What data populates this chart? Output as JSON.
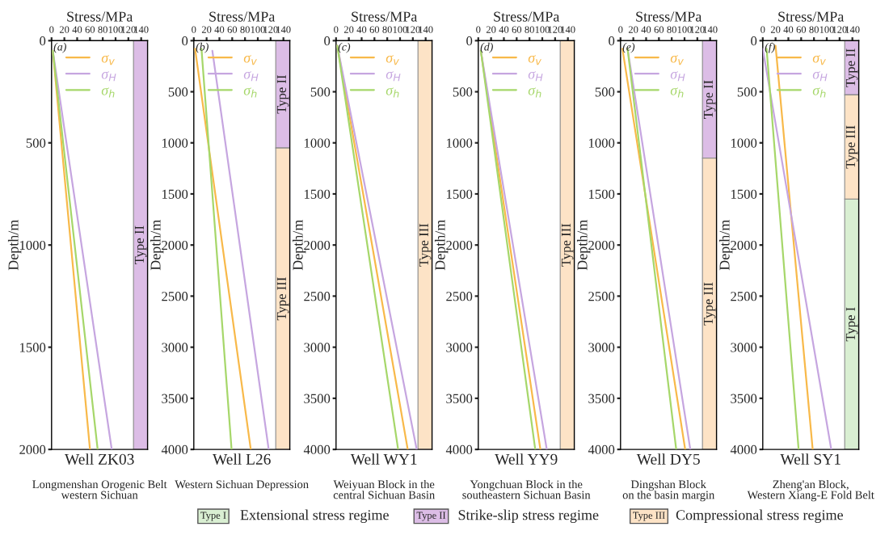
{
  "chart_data": [
    {
      "type": "line",
      "xlabel": "Stress/MPa",
      "ylabel": "Depth/m",
      "xlim": [
        0,
        150
      ],
      "xticks": [
        0,
        20,
        40,
        60,
        80,
        100,
        120,
        140
      ],
      "ylim": [
        2000,
        0
      ],
      "yticks": [
        0,
        500,
        1000,
        1500,
        2000
      ],
      "legend": "top right",
      "grid": false,
      "series": [
        {
          "name": "σ$_{v}$",
          "color": "#f8b94a",
          "x": [
            2,
            60
          ],
          "values": [
            50,
            2000
          ]
        },
        {
          "name": "σ$_{H}$",
          "color": "#c6a6e0",
          "x": [
            2,
            94
          ],
          "values": [
            50,
            2000
          ]
        },
        {
          "name": "σ$_{h}$",
          "color": "#a6d76a",
          "x": [
            2,
            72
          ],
          "values": [
            50,
            2000
          ]
        }
      ],
      "bands": [
        {
          "axis": "y",
          "from": 0,
          "to": 2000,
          "label": "Type II",
          "color": "#dcbde6"
        }
      ],
      "annotations": [
        "(a)",
        "Well ZK03",
        "Longmenshan Orogenic Belt\nwestern Sichuan"
      ]
    },
    {
      "type": "line",
      "xlabel": "Stress/MPa",
      "ylabel": "Depth/m",
      "xlim": [
        0,
        150
      ],
      "xticks": [
        0,
        20,
        40,
        60,
        80,
        100,
        120,
        140
      ],
      "ylim": [
        4000,
        0
      ],
      "yticks": [
        0,
        500,
        1000,
        1500,
        2000,
        2500,
        3000,
        3500,
        4000
      ],
      "legend": "top right",
      "grid": false,
      "series": [
        {
          "name": "σ$_{v}$",
          "color": "#f8b94a",
          "x": [
            2,
            89
          ],
          "values": [
            80,
            4000
          ]
        },
        {
          "name": "σ$_{H}$",
          "color": "#c6a6e0",
          "x": [
            29,
            117
          ],
          "values": [
            100,
            4000
          ]
        },
        {
          "name": "σ$_{h}$",
          "color": "#a6d76a",
          "x": [
            12,
            59
          ],
          "values": [
            80,
            4000
          ]
        }
      ],
      "bands": [
        {
          "axis": "y",
          "from": 0,
          "to": 1050,
          "label": "Type II",
          "color": "#dcbde6"
        },
        {
          "axis": "y",
          "from": 1050,
          "to": 4000,
          "label": "Type III",
          "color": "#fde3c6"
        }
      ],
      "annotations": [
        "(b)",
        "Well L26",
        "Western Sichuan Depression"
      ]
    },
    {
      "type": "line",
      "xlabel": "Stress/MPa",
      "ylabel": "Depth/m",
      "xlim": [
        0,
        150
      ],
      "xticks": [
        0,
        20,
        40,
        60,
        80,
        100,
        120,
        140
      ],
      "ylim": [
        4000,
        0
      ],
      "yticks": [
        0,
        500,
        1000,
        1500,
        2000,
        2500,
        3000,
        3500,
        4000
      ],
      "legend": "top right",
      "grid": false,
      "series": [
        {
          "name": "σ$_{v}$",
          "color": "#f8b94a",
          "x": [
            2,
            112
          ],
          "values": [
            50,
            4000
          ]
        },
        {
          "name": "σ$_{H}$",
          "color": "#c6a6e0",
          "x": [
            2,
            126
          ],
          "values": [
            50,
            4000
          ]
        },
        {
          "name": "σ$_{h}$",
          "color": "#a6d76a",
          "x": [
            2,
            97
          ],
          "values": [
            50,
            4000
          ]
        }
      ],
      "bands": [
        {
          "axis": "y",
          "from": 0,
          "to": 4000,
          "label": "Type III",
          "color": "#fde3c6"
        }
      ],
      "annotations": [
        "(c)",
        "Well WY1",
        "Weiyuan Block in the\ncentral Sichuan Basin"
      ]
    },
    {
      "type": "line",
      "xlabel": "Stress/MPa",
      "ylabel": "Depth/m",
      "xlim": [
        0,
        150
      ],
      "xticks": [
        0,
        20,
        40,
        60,
        80,
        100,
        120,
        140
      ],
      "ylim": [
        4000,
        0
      ],
      "yticks": [
        0,
        500,
        1000,
        1500,
        2000,
        2500,
        3000,
        3500,
        4000
      ],
      "legend": "top right",
      "grid": false,
      "series": [
        {
          "name": "σ$_{v}$",
          "color": "#f8b94a",
          "x": [
            4,
            97
          ],
          "values": [
            100,
            4000
          ]
        },
        {
          "name": "σ$_{H}$",
          "color": "#c6a6e0",
          "x": [
            4,
            107
          ],
          "values": [
            100,
            4000
          ]
        },
        {
          "name": "σ$_{h}$",
          "color": "#a6d76a",
          "x": [
            4,
            89
          ],
          "values": [
            100,
            4000
          ]
        }
      ],
      "bands": [
        {
          "axis": "y",
          "from": 0,
          "to": 4000,
          "label": "Type III",
          "color": "#fde3c6"
        }
      ],
      "annotations": [
        "(d)",
        "Well YY9",
        "Yongchuan Block in the\nsoutheastern Sichuan Basin"
      ]
    },
    {
      "type": "line",
      "xlabel": "Stress/MPa",
      "ylabel": "Depth/m",
      "xlim": [
        0,
        150
      ],
      "xticks": [
        0,
        20,
        40,
        60,
        80,
        100,
        120,
        140
      ],
      "ylim": [
        4000,
        0
      ],
      "yticks": [
        0,
        500,
        1000,
        1500,
        2000,
        2500,
        3000,
        3500,
        4000
      ],
      "legend": "top right",
      "grid": false,
      "series": [
        {
          "name": "σ$_{v}$",
          "color": "#f8b94a",
          "x": [
            3,
            101
          ],
          "values": [
            80,
            4000
          ]
        },
        {
          "name": "σ$_{H}$",
          "color": "#c6a6e0",
          "x": [
            11,
            109
          ],
          "values": [
            80,
            4000
          ]
        },
        {
          "name": "σ$_{h}$",
          "color": "#a6d76a",
          "x": [
            11,
            87
          ],
          "values": [
            80,
            4000
          ]
        }
      ],
      "bands": [
        {
          "axis": "y",
          "from": 0,
          "to": 1150,
          "label": "Type II",
          "color": "#dcbde6"
        },
        {
          "axis": "y",
          "from": 1150,
          "to": 4000,
          "label": "Type III",
          "color": "#fde3c6"
        }
      ],
      "annotations": [
        "(e)",
        "Well DY5",
        "Dingshan Block\non the basin margin"
      ]
    },
    {
      "type": "line",
      "xlabel": "Stress/MPa",
      "ylabel": "Depth/m",
      "xlim": [
        0,
        150
      ],
      "xticks": [
        0,
        20,
        40,
        60,
        80,
        100,
        120,
        140
      ],
      "ylim": [
        4000,
        0
      ],
      "yticks": [
        0,
        500,
        1000,
        1500,
        2000,
        2500,
        3000,
        3500,
        4000
      ],
      "legend": "top right",
      "grid": false,
      "series": [
        {
          "name": "σ$_{v}$",
          "color": "#f8b94a",
          "x": [
            20,
            78
          ],
          "values": [
            50,
            4000
          ]
        },
        {
          "name": "σ$_{H}$",
          "color": "#c6a6e0",
          "x": [
            0,
            107
          ],
          "values": [
            80,
            4000
          ]
        },
        {
          "name": "σ$_{h}$",
          "color": "#a6d76a",
          "x": [
            6,
            56
          ],
          "values": [
            80,
            4000
          ]
        }
      ],
      "bands": [
        {
          "axis": "y",
          "from": 1550,
          "to": 4000,
          "label": "Type I",
          "color": "#d9efd2"
        },
        {
          "axis": "y",
          "from": 0,
          "to": 530,
          "label": "Type II",
          "color": "#dcbde6"
        },
        {
          "axis": "y",
          "from": 530,
          "to": 1550,
          "label": "Type III",
          "color": "#fde3c6"
        }
      ],
      "annotations": [
        "(f)",
        "Well SY1",
        "Zheng'an Block,\nWestern Xiang-E Fold Belt",
        "Type I",
        "Extensional stress regime",
        "Type II",
        "Strike-slip stress regime",
        "Type III",
        "Compressional stress regime"
      ]
    }
  ]
}
